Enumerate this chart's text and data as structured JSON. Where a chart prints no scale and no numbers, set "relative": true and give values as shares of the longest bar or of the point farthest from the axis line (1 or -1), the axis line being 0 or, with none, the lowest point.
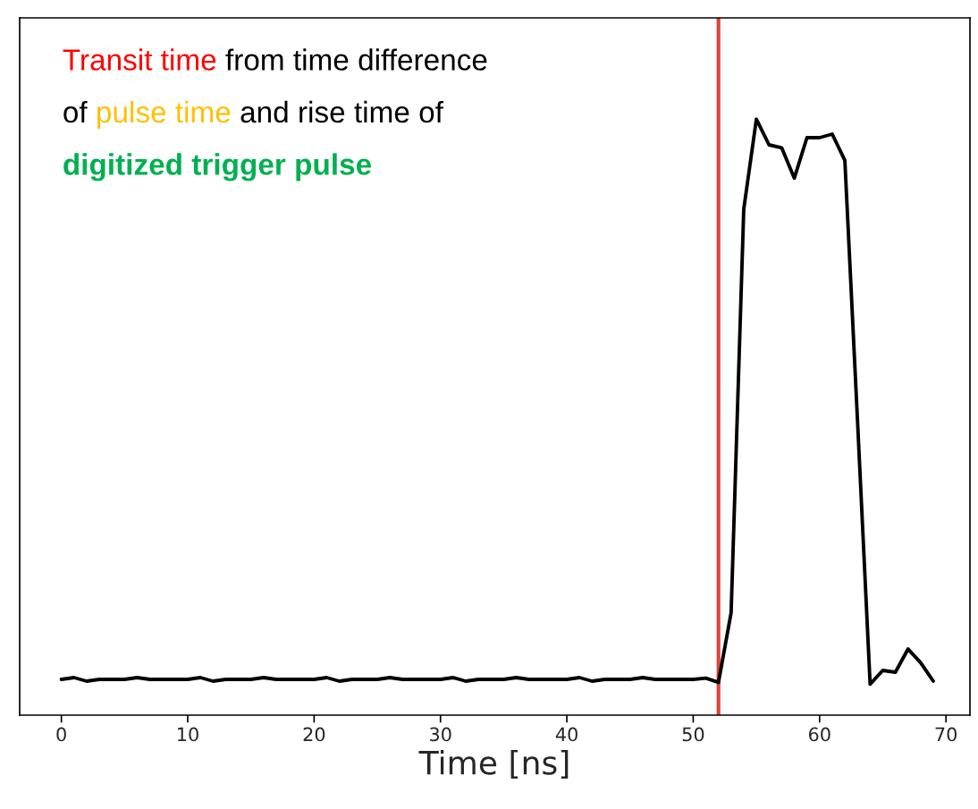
{
  "chart_data": {
    "type": "line",
    "relative": true,
    "xlabel": "Time [ns]",
    "xlim": [
      -3.3,
      71.9
    ],
    "xticks": [
      0,
      10,
      20,
      30,
      40,
      50,
      60,
      70
    ],
    "tick_labels": "x",
    "grid": false,
    "legend": false,
    "marker": "none",
    "line_style": "solid",
    "x": [
      0,
      1,
      2,
      3,
      4,
      5,
      6,
      7,
      8,
      9,
      10,
      11,
      12,
      13,
      14,
      15,
      16,
      17,
      18,
      19,
      20,
      21,
      22,
      23,
      24,
      25,
      26,
      27,
      28,
      29,
      30,
      31,
      32,
      33,
      34,
      35,
      36,
      37,
      38,
      39,
      40,
      41,
      42,
      43,
      44,
      45,
      46,
      47,
      48,
      49,
      50,
      51,
      52,
      53,
      54,
      55,
      56,
      57,
      58,
      59,
      60,
      61,
      62,
      63,
      64,
      65,
      66,
      67,
      68,
      69
    ],
    "series": [
      {
        "color": "#000000",
        "values": [
          0.06,
          0.063,
          0.057,
          0.06,
          0.06,
          0.06,
          0.063,
          0.06,
          0.06,
          0.06,
          0.06,
          0.063,
          0.057,
          0.06,
          0.06,
          0.06,
          0.063,
          0.06,
          0.06,
          0.06,
          0.06,
          0.063,
          0.057,
          0.06,
          0.06,
          0.06,
          0.063,
          0.06,
          0.06,
          0.06,
          0.06,
          0.063,
          0.057,
          0.06,
          0.06,
          0.06,
          0.063,
          0.06,
          0.06,
          0.06,
          0.06,
          0.063,
          0.057,
          0.06,
          0.06,
          0.06,
          0.063,
          0.06,
          0.06,
          0.06,
          0.06,
          0.062,
          0.055,
          0.172,
          0.849,
          1.0,
          0.957,
          0.952,
          0.901,
          0.969,
          0.969,
          0.975,
          0.931,
          0.495,
          0.052,
          0.075,
          0.072,
          0.111,
          0.088,
          0.057
        ]
      }
    ],
    "ref_lines": [
      {
        "axis": "x",
        "value": 52,
        "color": "#d9443a",
        "line_style": "solid"
      }
    ],
    "annotations": [
      "Transit time",
      " from time difference",
      "of ",
      "pulse time",
      " and rise time of",
      "digitized trigger pulse"
    ]
  }
}
